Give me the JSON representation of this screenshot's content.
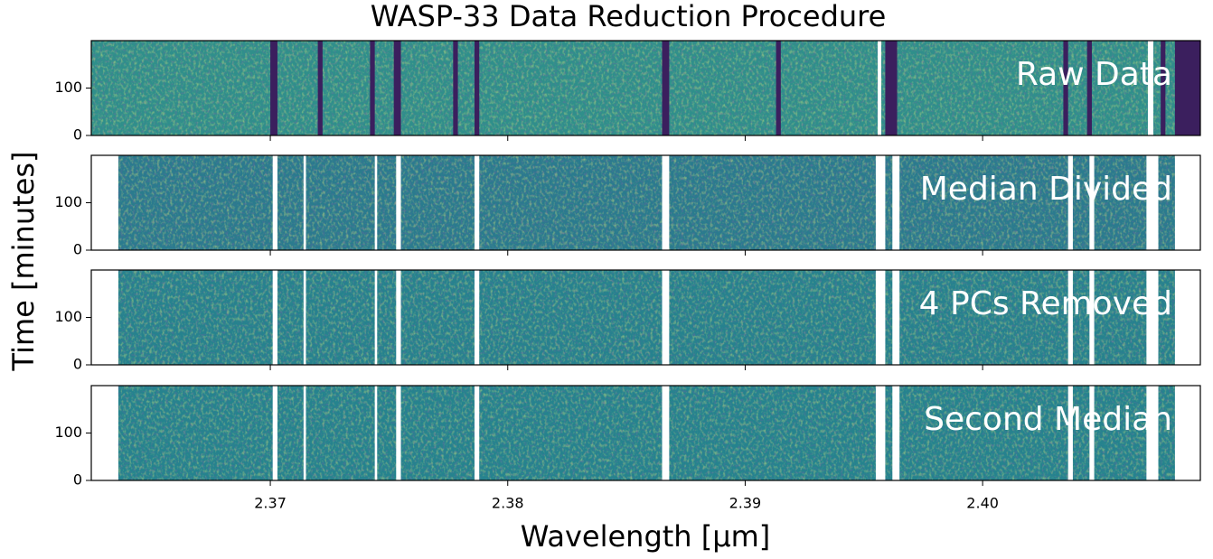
{
  "chart_data": {
    "type": "heatmap-stack",
    "title": "WASP-33 Data Reduction Procedure",
    "x_label": "Wavelength [μm]",
    "y_label": "Time [minutes]",
    "xlim": [
      2.36246,
      2.40917
    ],
    "xticks": [
      2.37,
      2.38,
      2.39,
      {
        "value": 2.4,
        "label": "2.40"
      }
    ],
    "ylim": [
      0,
      200
    ],
    "yticks": [
      0,
      100
    ],
    "panels": [
      {
        "label": "Raw Data",
        "color": "#2f8f8b",
        "data_range": [
          2.36246,
          2.40917
        ],
        "dark_lines": [
          [
            2.37,
            2.3703
          ],
          [
            2.372,
            2.3722
          ],
          [
            2.3742,
            2.3744
          ],
          [
            2.3752,
            2.3755
          ],
          [
            2.3777,
            2.3779
          ],
          [
            2.3786,
            2.3788
          ],
          [
            2.3865,
            2.3868
          ],
          [
            2.3913,
            2.3915
          ],
          [
            2.3959,
            2.3964
          ],
          [
            2.4034,
            2.4036
          ],
          [
            2.4044,
            2.4046
          ],
          [
            2.4075,
            2.4077
          ],
          [
            2.4081,
            2.40917
          ]
        ],
        "masked": [
          [
            2.39558,
            2.39573
          ],
          [
            2.40696,
            2.40719
          ]
        ]
      },
      {
        "label": "Median Divided",
        "color": "#2a7b8e",
        "data_range": [
          2.3636,
          2.4081
        ],
        "dark_lines": [],
        "masked": [
          [
            2.3701,
            2.3703
          ],
          [
            2.3714,
            2.3715
          ],
          [
            2.3744,
            2.3745
          ],
          [
            2.3753,
            2.3755
          ],
          [
            2.3786,
            2.3788
          ],
          [
            2.3865,
            2.3868
          ],
          [
            2.3955,
            2.3959
          ],
          [
            2.3962,
            2.3965
          ],
          [
            2.4036,
            2.4038
          ],
          [
            2.4045,
            2.4047
          ],
          [
            2.4069,
            2.4074
          ]
        ]
      },
      {
        "label": "4 PCs Removed",
        "color": "#26828e",
        "data_range": [
          2.3636,
          2.4081
        ],
        "dark_lines": [],
        "masked": [
          [
            2.3701,
            2.3703
          ],
          [
            2.3714,
            2.3715
          ],
          [
            2.3744,
            2.3745
          ],
          [
            2.3753,
            2.3755
          ],
          [
            2.3786,
            2.3788
          ],
          [
            2.3865,
            2.3868
          ],
          [
            2.3955,
            2.3959
          ],
          [
            2.3962,
            2.3965
          ],
          [
            2.4036,
            2.4038
          ],
          [
            2.4045,
            2.4047
          ],
          [
            2.4069,
            2.4074
          ]
        ]
      },
      {
        "label": "Second Median",
        "color": "#25838e",
        "data_range": [
          2.3636,
          2.4081
        ],
        "dark_lines": [],
        "masked": [
          [
            2.3701,
            2.3703
          ],
          [
            2.3714,
            2.3715
          ],
          [
            2.3744,
            2.3745
          ],
          [
            2.3753,
            2.3755
          ],
          [
            2.3786,
            2.3788
          ],
          [
            2.3865,
            2.3868
          ],
          [
            2.3955,
            2.3959
          ],
          [
            2.3962,
            2.3965
          ],
          [
            2.4036,
            2.4038
          ],
          [
            2.4045,
            2.4047
          ],
          [
            2.4069,
            2.4074
          ]
        ]
      }
    ]
  }
}
